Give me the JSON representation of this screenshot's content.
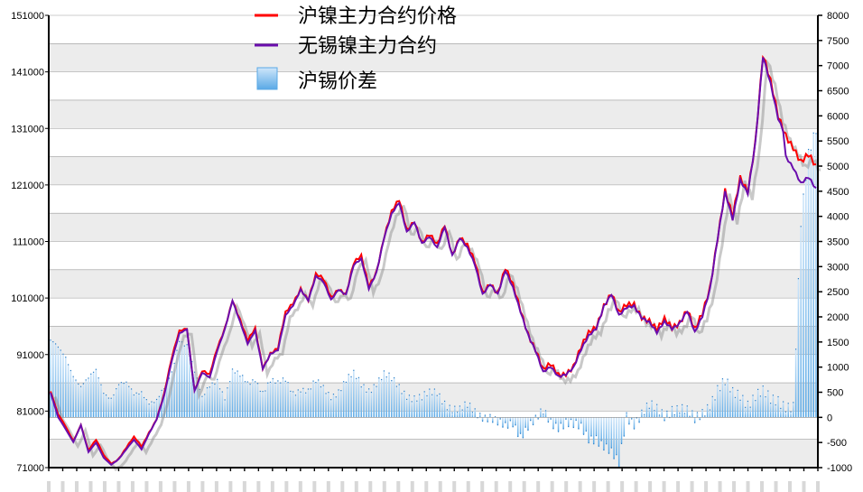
{
  "chart_data": {
    "type": "line+bar",
    "legend": [
      {
        "name": "沪镍主力合约价格",
        "color": "#ff0000",
        "kind": "line"
      },
      {
        "name": "无锡镍主力合约",
        "color": "#6a0dad",
        "kind": "line"
      },
      {
        "name": "沪锡价差",
        "color": "#5aa9e6",
        "kind": "bar"
      }
    ],
    "left_axis": {
      "ticks": [
        "151000",
        "141000",
        "131000",
        "121000",
        "111000",
        "101000",
        "91000",
        "81000",
        "71000"
      ],
      "ylim": [
        71000,
        151000
      ]
    },
    "right_axis": {
      "ticks": [
        "8000",
        "7500",
        "7000",
        "6500",
        "6000",
        "5500",
        "5000",
        "4500",
        "4000",
        "3500",
        "3000",
        "2500",
        "2000",
        "1500",
        "1000",
        "500",
        "0",
        "-500",
        "-1000"
      ],
      "ylim": [
        -1000,
        8000
      ]
    },
    "price_anchors": [
      [
        0,
        84500
      ],
      [
        3,
        80000
      ],
      [
        6,
        78000
      ],
      [
        9,
        76000
      ],
      [
        12,
        79000
      ],
      [
        15,
        74000
      ],
      [
        18,
        75500
      ],
      [
        21,
        73000
      ],
      [
        24,
        72000
      ],
      [
        27,
        73000
      ],
      [
        30,
        74500
      ],
      [
        33,
        76000
      ],
      [
        36,
        74500
      ],
      [
        39,
        77500
      ],
      [
        42,
        80000
      ],
      [
        45,
        84000
      ],
      [
        48,
        90000
      ],
      [
        51,
        95000
      ],
      [
        54,
        96000
      ],
      [
        57,
        85000
      ],
      [
        60,
        88000
      ],
      [
        63,
        87000
      ],
      [
        66,
        92000
      ],
      [
        69,
        96000
      ],
      [
        72,
        101000
      ],
      [
        75,
        97000
      ],
      [
        78,
        93000
      ],
      [
        81,
        95500
      ],
      [
        84,
        89000
      ],
      [
        87,
        91500
      ],
      [
        90,
        92000
      ],
      [
        93,
        98000
      ],
      [
        96,
        100000
      ],
      [
        99,
        103000
      ],
      [
        102,
        101000
      ],
      [
        105,
        105000
      ],
      [
        108,
        104000
      ],
      [
        111,
        101000
      ],
      [
        114,
        103000
      ],
      [
        117,
        102000
      ],
      [
        120,
        107000
      ],
      [
        123,
        108000
      ],
      [
        126,
        103000
      ],
      [
        129,
        106000
      ],
      [
        132,
        112000
      ],
      [
        135,
        116000
      ],
      [
        138,
        118000
      ],
      [
        141,
        113000
      ],
      [
        144,
        115000
      ],
      [
        147,
        111000
      ],
      [
        150,
        112000
      ],
      [
        153,
        110000
      ],
      [
        156,
        114000
      ],
      [
        159,
        109000
      ],
      [
        162,
        112000
      ],
      [
        165,
        110000
      ],
      [
        168,
        107000
      ],
      [
        171,
        102000
      ],
      [
        174,
        104000
      ],
      [
        177,
        102000
      ],
      [
        180,
        106000
      ],
      [
        183,
        103000
      ],
      [
        186,
        99000
      ],
      [
        189,
        95000
      ],
      [
        192,
        92000
      ],
      [
        195,
        88000
      ],
      [
        198,
        89000
      ],
      [
        201,
        87500
      ],
      [
        204,
        88000
      ],
      [
        207,
        89000
      ],
      [
        210,
        92000
      ],
      [
        213,
        94500
      ],
      [
        216,
        96000
      ],
      [
        219,
        100000
      ],
      [
        222,
        102000
      ],
      [
        225,
        98000
      ],
      [
        228,
        99500
      ],
      [
        231,
        100000
      ],
      [
        234,
        98000
      ],
      [
        237,
        97000
      ],
      [
        240,
        95000
      ],
      [
        243,
        97000
      ],
      [
        246,
        96000
      ],
      [
        249,
        97000
      ],
      [
        252,
        99000
      ],
      [
        255,
        95000
      ],
      [
        258,
        98000
      ],
      [
        261,
        103000
      ],
      [
        264,
        112000
      ],
      [
        267,
        120000
      ],
      [
        270,
        115000
      ],
      [
        273,
        122000
      ],
      [
        276,
        120000
      ],
      [
        279,
        129000
      ],
      [
        282,
        144000
      ],
      [
        285,
        139000
      ],
      [
        288,
        133000
      ],
      [
        291,
        130000
      ],
      [
        294,
        128000
      ],
      [
        297,
        125000
      ],
      [
        300,
        126000
      ],
      [
        303,
        124000
      ]
    ],
    "spread_anchors": [
      [
        0,
        1450
      ],
      [
        6,
        1250
      ],
      [
        9,
        900
      ],
      [
        12,
        600
      ],
      [
        15,
        700
      ],
      [
        18,
        900
      ],
      [
        21,
        550
      ],
      [
        24,
        450
      ],
      [
        27,
        650
      ],
      [
        30,
        600
      ],
      [
        33,
        420
      ],
      [
        36,
        560
      ],
      [
        39,
        360
      ],
      [
        42,
        320
      ],
      [
        45,
        500
      ],
      [
        48,
        850
      ],
      [
        51,
        1600
      ],
      [
        54,
        1500
      ],
      [
        57,
        900
      ],
      [
        60,
        300
      ],
      [
        63,
        600
      ],
      [
        66,
        800
      ],
      [
        69,
        450
      ],
      [
        72,
        900
      ],
      [
        75,
        760
      ],
      [
        78,
        650
      ],
      [
        81,
        820
      ],
      [
        84,
        550
      ],
      [
        87,
        700
      ],
      [
        90,
        600
      ],
      [
        93,
        740
      ],
      [
        96,
        550
      ],
      [
        99,
        610
      ],
      [
        102,
        480
      ],
      [
        105,
        650
      ],
      [
        108,
        580
      ],
      [
        111,
        480
      ],
      [
        114,
        560
      ],
      [
        117,
        700
      ],
      [
        120,
        800
      ],
      [
        123,
        650
      ],
      [
        126,
        600
      ],
      [
        129,
        720
      ],
      [
        132,
        820
      ],
      [
        135,
        700
      ],
      [
        138,
        600
      ],
      [
        141,
        500
      ],
      [
        144,
        420
      ],
      [
        147,
        350
      ],
      [
        150,
        420
      ],
      [
        153,
        500
      ],
      [
        156,
        350
      ],
      [
        159,
        200
      ],
      [
        162,
        100
      ],
      [
        165,
        180
      ],
      [
        168,
        120
      ],
      [
        171,
        80
      ],
      [
        174,
        30
      ],
      [
        177,
        -150
      ],
      [
        180,
        -250
      ],
      [
        183,
        -100
      ],
      [
        186,
        -300
      ],
      [
        189,
        -150
      ],
      [
        192,
        -100
      ],
      [
        195,
        60
      ],
      [
        198,
        -80
      ],
      [
        201,
        -120
      ],
      [
        204,
        -80
      ],
      [
        207,
        -200
      ],
      [
        210,
        -260
      ],
      [
        213,
        -400
      ],
      [
        216,
        -350
      ],
      [
        219,
        -550
      ],
      [
        222,
        -760
      ],
      [
        225,
        -980
      ],
      [
        228,
        50
      ],
      [
        231,
        -60
      ],
      [
        234,
        80
      ],
      [
        237,
        180
      ],
      [
        240,
        110
      ],
      [
        243,
        60
      ],
      [
        246,
        220
      ],
      [
        249,
        180
      ],
      [
        252,
        60
      ],
      [
        255,
        -80
      ],
      [
        258,
        120
      ],
      [
        261,
        320
      ],
      [
        264,
        550
      ],
      [
        267,
        650
      ],
      [
        270,
        450
      ],
      [
        273,
        480
      ],
      [
        276,
        320
      ],
      [
        279,
        420
      ],
      [
        282,
        450
      ],
      [
        285,
        320
      ],
      [
        288,
        380
      ],
      [
        291,
        280
      ],
      [
        294,
        200
      ],
      [
        297,
        3800
      ],
      [
        300,
        5200
      ],
      [
        303,
        5800
      ]
    ],
    "num_points": 304
  }
}
